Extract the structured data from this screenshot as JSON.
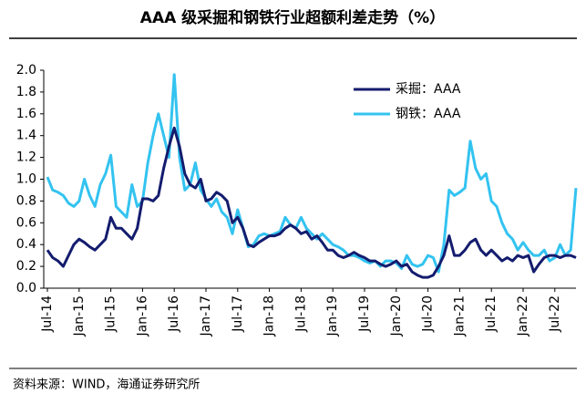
{
  "chart_data": {
    "type": "line",
    "title": "AAA 级采掘和钢铁行业超额利差走势（%）",
    "source": "资料来源：WIND，海通证券研究所",
    "categories": [
      "Jul-14",
      null,
      null,
      null,
      null,
      null,
      "Jan-15",
      null,
      null,
      null,
      null,
      null,
      "Jul-15",
      null,
      null,
      null,
      null,
      null,
      "Jan-16",
      null,
      null,
      null,
      null,
      null,
      "Jul-16",
      null,
      null,
      null,
      null,
      null,
      "Jan-17",
      null,
      null,
      null,
      null,
      null,
      "Jul-17",
      null,
      null,
      null,
      null,
      null,
      "Jan-18",
      null,
      null,
      null,
      null,
      null,
      "Jul-18",
      null,
      null,
      null,
      null,
      null,
      "Jan-19",
      null,
      null,
      null,
      null,
      null,
      "Jul-19",
      null,
      null,
      null,
      null,
      null,
      "Jan-20",
      null,
      null,
      null,
      null,
      null,
      "Jul-20",
      null,
      null,
      null,
      null,
      null,
      "Jan-21",
      null,
      null,
      null,
      null,
      null,
      "Jul-21",
      null,
      null,
      null,
      null,
      null,
      "Jan-22",
      null,
      null,
      null,
      null,
      null,
      "Jul-22",
      null,
      null,
      null,
      null
    ],
    "series": [
      {
        "name": "采掘：AAA",
        "color": "#141c6e",
        "values": [
          0.35,
          0.28,
          0.25,
          0.2,
          0.3,
          0.4,
          0.45,
          0.42,
          0.38,
          0.35,
          0.4,
          0.45,
          0.65,
          0.55,
          0.55,
          0.5,
          0.45,
          0.55,
          0.82,
          0.82,
          0.8,
          0.85,
          1.1,
          1.3,
          1.47,
          1.3,
          1.05,
          0.95,
          0.92,
          1.0,
          0.8,
          0.82,
          0.88,
          0.85,
          0.8,
          0.6,
          0.65,
          0.55,
          0.4,
          0.38,
          0.42,
          0.45,
          0.48,
          0.48,
          0.5,
          0.55,
          0.58,
          0.55,
          0.5,
          0.52,
          0.45,
          0.48,
          0.42,
          0.35,
          0.35,
          0.3,
          0.28,
          0.3,
          0.33,
          0.3,
          0.28,
          0.25,
          0.25,
          0.22,
          0.2,
          0.22,
          0.25,
          0.2,
          0.22,
          0.15,
          0.12,
          0.1,
          0.1,
          0.12,
          0.2,
          0.3,
          0.48,
          0.3,
          0.3,
          0.35,
          0.42,
          0.45,
          0.35,
          0.3,
          0.35,
          0.3,
          0.25,
          0.28,
          0.25,
          0.3,
          0.28,
          0.3,
          0.15,
          0.22,
          0.28,
          0.3,
          0.3,
          0.28,
          0.3,
          0.3,
          0.28
        ]
      },
      {
        "name": "钢铁：AAA",
        "color": "#33c3f0",
        "values": [
          1.02,
          0.9,
          0.88,
          0.85,
          0.78,
          0.75,
          0.8,
          1.0,
          0.85,
          0.75,
          0.95,
          1.05,
          1.22,
          0.75,
          0.7,
          0.65,
          0.95,
          0.75,
          0.8,
          1.15,
          1.4,
          1.6,
          1.4,
          1.2,
          1.96,
          1.2,
          0.9,
          0.95,
          1.15,
          0.9,
          0.82,
          0.75,
          0.82,
          0.7,
          0.65,
          0.5,
          0.72,
          0.55,
          0.38,
          0.4,
          0.48,
          0.5,
          0.48,
          0.5,
          0.52,
          0.65,
          0.58,
          0.55,
          0.65,
          0.55,
          0.5,
          0.45,
          0.5,
          0.45,
          0.4,
          0.38,
          0.35,
          0.3,
          0.3,
          0.28,
          0.25,
          0.23,
          0.25,
          0.2,
          0.25,
          0.25,
          0.23,
          0.18,
          0.3,
          0.22,
          0.2,
          0.22,
          0.3,
          0.28,
          0.15,
          0.4,
          0.9,
          0.85,
          0.88,
          0.92,
          1.35,
          1.1,
          1.0,
          1.05,
          0.8,
          0.75,
          0.6,
          0.5,
          0.45,
          0.35,
          0.42,
          0.35,
          0.3,
          0.3,
          0.35,
          0.25,
          0.28,
          0.4,
          0.3,
          0.35,
          0.92
        ]
      }
    ],
    "ylim": [
      0,
      2
    ],
    "yticks": [
      {
        "value": 0,
        "label": "0.0"
      },
      0.2,
      0.4,
      0.6,
      0.8,
      {
        "value": 1,
        "label": "1.0"
      },
      1.2,
      1.4,
      1.6,
      1.8,
      {
        "value": 2,
        "label": "2.0"
      }
    ]
  }
}
